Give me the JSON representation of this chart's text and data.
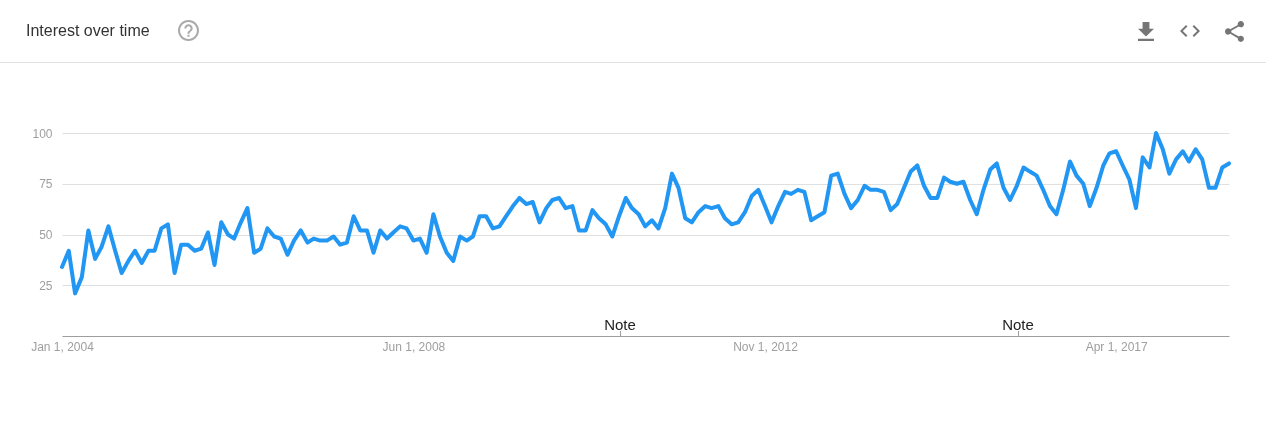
{
  "chart_data": {
    "type": "line",
    "title": "Interest over time",
    "x": [
      "2004-01",
      "2004-02",
      "2004-03",
      "2004-04",
      "2004-05",
      "2004-06",
      "2004-07",
      "2004-08",
      "2004-09",
      "2004-10",
      "2004-11",
      "2004-12",
      "2005-01",
      "2005-02",
      "2005-03",
      "2005-04",
      "2005-05",
      "2005-06",
      "2005-07",
      "2005-08",
      "2005-09",
      "2005-10",
      "2005-11",
      "2005-12",
      "2006-01",
      "2006-02",
      "2006-03",
      "2006-04",
      "2006-05",
      "2006-06",
      "2006-07",
      "2006-08",
      "2006-09",
      "2006-10",
      "2006-11",
      "2006-12",
      "2007-01",
      "2007-02",
      "2007-03",
      "2007-04",
      "2007-05",
      "2007-06",
      "2007-07",
      "2007-08",
      "2007-09",
      "2007-10",
      "2007-11",
      "2007-12",
      "2008-01",
      "2008-02",
      "2008-03",
      "2008-04",
      "2008-05",
      "2008-06",
      "2008-07",
      "2008-08",
      "2008-09",
      "2008-10",
      "2008-11",
      "2008-12",
      "2009-01",
      "2009-02",
      "2009-03",
      "2009-04",
      "2009-05",
      "2009-06",
      "2009-07",
      "2009-08",
      "2009-09",
      "2009-10",
      "2009-11",
      "2009-12",
      "2010-01",
      "2010-02",
      "2010-03",
      "2010-04",
      "2010-05",
      "2010-06",
      "2010-07",
      "2010-08",
      "2010-09",
      "2010-10",
      "2010-11",
      "2010-12",
      "2011-01",
      "2011-02",
      "2011-03",
      "2011-04",
      "2011-05",
      "2011-06",
      "2011-07",
      "2011-08",
      "2011-09",
      "2011-10",
      "2011-11",
      "2011-12",
      "2012-01",
      "2012-02",
      "2012-03",
      "2012-04",
      "2012-05",
      "2012-06",
      "2012-07",
      "2012-08",
      "2012-09",
      "2012-10",
      "2012-11",
      "2012-12",
      "2013-01",
      "2013-02",
      "2013-03",
      "2013-04",
      "2013-05",
      "2013-06",
      "2013-07",
      "2013-08",
      "2013-09",
      "2013-10",
      "2013-11",
      "2013-12",
      "2014-01",
      "2014-02",
      "2014-03",
      "2014-04",
      "2014-05",
      "2014-06",
      "2014-07",
      "2014-08",
      "2014-09",
      "2014-10",
      "2014-11",
      "2014-12",
      "2015-01",
      "2015-02",
      "2015-03",
      "2015-04",
      "2015-05",
      "2015-06",
      "2015-07",
      "2015-08",
      "2015-09",
      "2015-10",
      "2015-11",
      "2015-12",
      "2016-01",
      "2016-02",
      "2016-03",
      "2016-04",
      "2016-05",
      "2016-06",
      "2016-07",
      "2016-08",
      "2016-09",
      "2016-10",
      "2016-11",
      "2016-12",
      "2017-01",
      "2017-02",
      "2017-03",
      "2017-04",
      "2017-05",
      "2017-06",
      "2017-07",
      "2017-08",
      "2017-09",
      "2017-10",
      "2017-11",
      "2017-12",
      "2018-01",
      "2018-02",
      "2018-03",
      "2018-04",
      "2018-05",
      "2018-06",
      "2018-07",
      "2018-08",
      "2018-09"
    ],
    "values": [
      34,
      42,
      21,
      29,
      52,
      38,
      44,
      54,
      42,
      31,
      37,
      42,
      36,
      42,
      42,
      53,
      55,
      31,
      45,
      45,
      42,
      43,
      51,
      35,
      56,
      50,
      48,
      56,
      63,
      41,
      43,
      53,
      49,
      48,
      40,
      47,
      52,
      46,
      48,
      47,
      47,
      49,
      45,
      46,
      59,
      52,
      52,
      41,
      52,
      48,
      51,
      54,
      53,
      47,
      48,
      41,
      60,
      49,
      41,
      37,
      49,
      47,
      49,
      59,
      59,
      53,
      54,
      59,
      64,
      68,
      65,
      66,
      56,
      63,
      67,
      68,
      63,
      64,
      52,
      52,
      62,
      58,
      55,
      49,
      59,
      68,
      63,
      60,
      54,
      57,
      53,
      63,
      80,
      73,
      58,
      56,
      61,
      64,
      63,
      64,
      58,
      55,
      56,
      61,
      69,
      72,
      64,
      56,
      64,
      71,
      70,
      72,
      71,
      57,
      59,
      61,
      79,
      80,
      70,
      63,
      67,
      74,
      72,
      72,
      71,
      62,
      65,
      73,
      81,
      84,
      74,
      68,
      68,
      78,
      76,
      75,
      76,
      67,
      60,
      72,
      82,
      85,
      73,
      67,
      74,
      83,
      81,
      79,
      72,
      64,
      60,
      72,
      86,
      79,
      75,
      64,
      73,
      84,
      90,
      91,
      84,
      77,
      63,
      88,
      83,
      100,
      92,
      80,
      87,
      91,
      86,
      92,
      87,
      73,
      73,
      83,
      85
    ],
    "color": "#2196f3",
    "xlim": [
      "2004-01-01",
      "2018-09-01"
    ],
    "ylim": [
      0,
      100
    ],
    "xticks": [
      {
        "value": "2004-01-01",
        "label": "Jan 1, 2004"
      },
      {
        "value": "2008-06-01",
        "label": "Jun 1, 2008"
      },
      {
        "value": "2012-11-01",
        "label": "Nov 1, 2012"
      },
      {
        "value": "2017-04-01",
        "label": "Apr 1, 2017"
      }
    ],
    "yticks": [
      25,
      50,
      75,
      100
    ],
    "grid": "y",
    "annotations": [
      "Note",
      "Note"
    ]
  }
}
